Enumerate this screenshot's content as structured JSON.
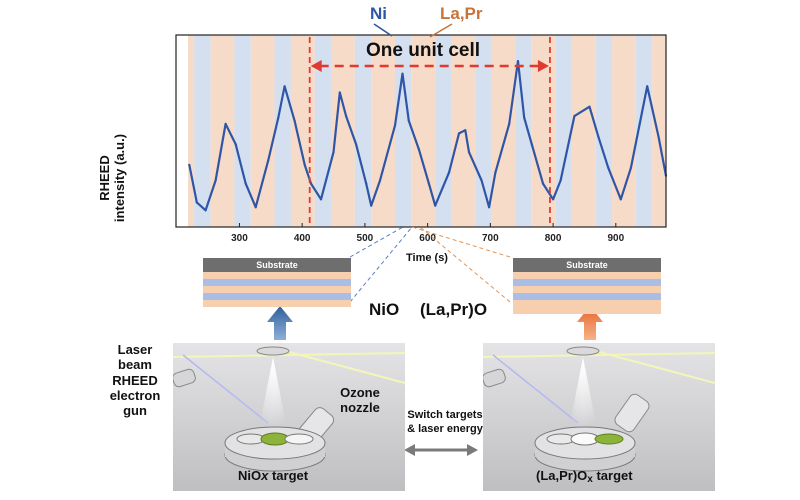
{
  "chart_data": {
    "type": "line",
    "title": "",
    "xlabel": "Time (s)",
    "ylabel_line1": "RHEED",
    "ylabel_line2": "intensity (a.u.)",
    "xlim": [
      218,
      980
    ],
    "xticks": [
      300,
      400,
      500,
      600,
      700,
      800,
      900
    ],
    "legend": [
      {
        "label": "Ni",
        "color": "#2f56a6"
      },
      {
        "label": "La,Pr",
        "color": "#c8733a"
      }
    ],
    "unit_cell": {
      "label": "One unit cell",
      "start": 412,
      "end": 795,
      "color": "#e03a2e"
    },
    "bands": {
      "period": 64,
      "blue_start": 228,
      "blue_width": 26,
      "orange_start": 254,
      "orange_width": 38,
      "blue_color": "#d4dff0",
      "orange_color": "#f7dbc9"
    },
    "series": {
      "color": "#2f56a6",
      "x": [
        220,
        232,
        246,
        262,
        278,
        294,
        310,
        326,
        346,
        362,
        372,
        388,
        404,
        414,
        430,
        450,
        460,
        470,
        486,
        502,
        510,
        524,
        548,
        560,
        570,
        586,
        602,
        612,
        634,
        650,
        660,
        666,
        686,
        698,
        708,
        730,
        744,
        754,
        766,
        784,
        800,
        812,
        834,
        858,
        872,
        888,
        908,
        924,
        938,
        950,
        968,
        980
      ],
      "y": [
        0.32,
        0.08,
        0.03,
        0.22,
        0.58,
        0.45,
        0.2,
        0.05,
        0.35,
        0.62,
        0.82,
        0.6,
        0.32,
        0.2,
        0.1,
        0.4,
        0.78,
        0.63,
        0.45,
        0.2,
        0.06,
        0.22,
        0.57,
        0.9,
        0.6,
        0.42,
        0.2,
        0.06,
        0.27,
        0.52,
        0.54,
        0.4,
        0.22,
        0.05,
        0.27,
        0.58,
        0.98,
        0.62,
        0.45,
        0.2,
        0.1,
        0.22,
        0.63,
        0.69,
        0.5,
        0.3,
        0.1,
        0.3,
        0.58,
        0.82,
        0.5,
        0.25
      ]
    }
  },
  "layers": {
    "substrate_label": "Substrate",
    "nio_label": "NiO",
    "lapro_label": "(La,Pr)O",
    "nio_color": "#a9bde6",
    "lapro_color": "#f6cfae"
  },
  "chamber": {
    "laser_label_lines": [
      "Laser",
      "beam"
    ],
    "rheed_label_lines": [
      "RHEED",
      "electron",
      "gun"
    ],
    "ozone_label_lines": [
      "Ozone",
      "nozzle"
    ],
    "switch_label_lines": [
      "Switch targets",
      "& laser energy"
    ],
    "nio_target_prefix": "NiO",
    "nio_target_sub": "x",
    "nio_target_suffix": " target",
    "lapro_target_prefix": "(La,Pr)O",
    "lapro_target_sub": "x",
    "lapro_target_suffix": " target",
    "blue_arrow_color": "#3e6fa8",
    "orange_arrow_color": "#e8732a"
  }
}
